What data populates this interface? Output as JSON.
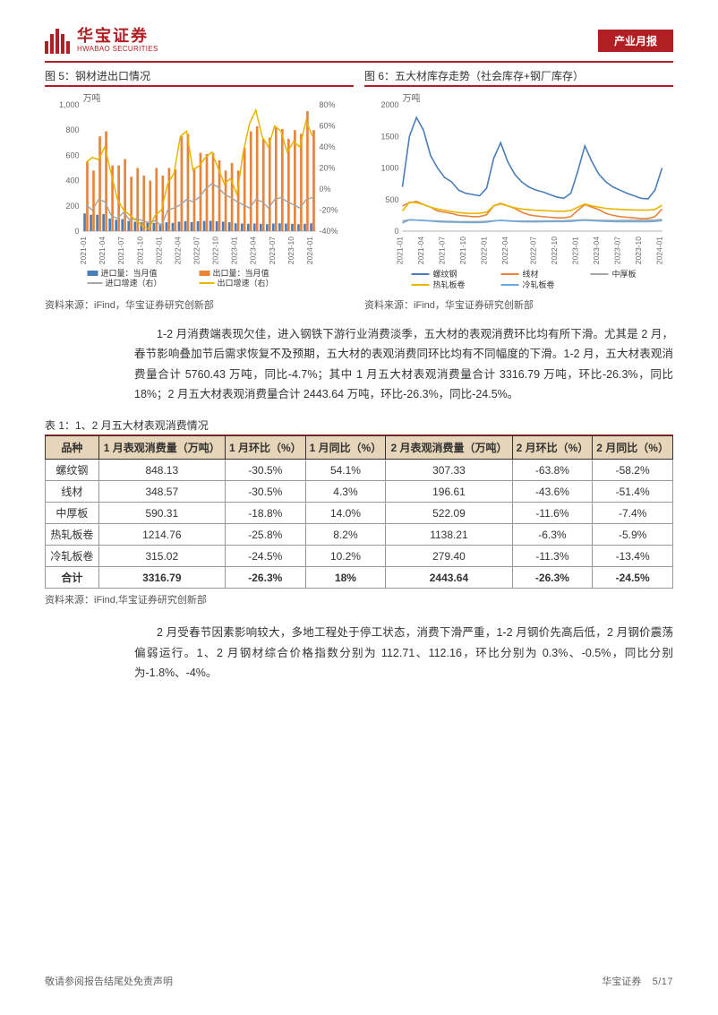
{
  "header": {
    "logo_cn": "华宝证券",
    "logo_en": "HWABAO SECURITIES",
    "report_tag": "产业月报"
  },
  "chart5": {
    "title": "图 5：钢材进出口情况",
    "y_unit": "万吨",
    "y_ticks_left": [
      0,
      200,
      400,
      600,
      800,
      1000
    ],
    "y_ticks_right": [
      "-40%",
      "-20%",
      "0%",
      "20%",
      "40%",
      "60%",
      "80%"
    ],
    "x_labels": [
      "2021-01",
      "2021-04",
      "2021-07",
      "2021-10",
      "2022-01",
      "2022-04",
      "2022-07",
      "2022-10",
      "2023-01",
      "2023-04",
      "2023-07",
      "2023-10",
      "2024-01"
    ],
    "import_vol": [
      140,
      130,
      130,
      135,
      100,
      90,
      95,
      80,
      75,
      70,
      68,
      65,
      60,
      70,
      65,
      75,
      78,
      72,
      78,
      80,
      82,
      78,
      75,
      70,
      62,
      60,
      58,
      60,
      58,
      55,
      60,
      62,
      60,
      58,
      55,
      58,
      62
    ],
    "export_vol": [
      550,
      480,
      750,
      790,
      520,
      520,
      570,
      430,
      500,
      440,
      400,
      500,
      440,
      500,
      490,
      750,
      770,
      500,
      620,
      610,
      620,
      560,
      480,
      540,
      480,
      660,
      790,
      830,
      730,
      740,
      820,
      810,
      730,
      800,
      770,
      950,
      800
    ],
    "import_growth": [
      -15,
      -20,
      -10,
      -12,
      -25,
      -28,
      -22,
      -30,
      -28,
      -30,
      -32,
      -30,
      -35,
      -20,
      -18,
      -15,
      -10,
      -12,
      -8,
      0,
      5,
      2,
      -5,
      -8,
      -12,
      -15,
      -18,
      -10,
      -12,
      -18,
      -10,
      -8,
      -12,
      -15,
      -18,
      -10,
      -8
    ],
    "export_growth": [
      25,
      30,
      28,
      40,
      15,
      -10,
      -20,
      -25,
      -30,
      -35,
      -38,
      -25,
      -20,
      5,
      15,
      50,
      55,
      18,
      22,
      30,
      35,
      20,
      5,
      10,
      -5,
      35,
      62,
      75,
      50,
      40,
      60,
      55,
      35,
      45,
      40,
      65,
      50
    ],
    "colors": {
      "import_vol": "#4a7ebb",
      "export_vol": "#e8833a",
      "import_growth": "#a6a6a6",
      "export_growth": "#e8b500"
    },
    "legend": [
      "进口量：当月值",
      "出口量：当月值",
      "进口增速（右）",
      "出口增速（右）"
    ],
    "source": "资料来源：iFind，华宝证券研究创新部"
  },
  "chart6": {
    "title": "图 6：五大材库存走势（社会库存+钢厂库存）",
    "y_unit": "万吨",
    "y_ticks": [
      0,
      500,
      1000,
      1500,
      2000
    ],
    "x_labels": [
      "2021-01",
      "2021-04",
      "2021-07",
      "2021-10",
      "2022-01",
      "2022-04",
      "2022-07",
      "2022-10",
      "2023-01",
      "2023-04",
      "2023-07",
      "2023-10",
      "2024-01"
    ],
    "series": {
      "rebar": [
        700,
        1500,
        1800,
        1600,
        1200,
        1000,
        850,
        780,
        650,
        600,
        580,
        560,
        680,
        1150,
        1400,
        1100,
        900,
        780,
        700,
        650,
        620,
        580,
        540,
        520,
        600,
        950,
        1350,
        1100,
        900,
        780,
        700,
        650,
        600,
        560,
        520,
        510,
        650,
        1000
      ],
      "wire": [
        400,
        450,
        470,
        420,
        380,
        320,
        300,
        280,
        250,
        240,
        230,
        230,
        260,
        400,
        440,
        400,
        360,
        300,
        260,
        240,
        230,
        220,
        210,
        210,
        230,
        330,
        420,
        380,
        340,
        280,
        250,
        230,
        220,
        210,
        200,
        200,
        230,
        350
      ],
      "plate": [
        160,
        180,
        175,
        170,
        165,
        160,
        155,
        155,
        150,
        150,
        150,
        150,
        155,
        165,
        170,
        165,
        160,
        158,
        158,
        158,
        160,
        162,
        165,
        165,
        168,
        175,
        180,
        175,
        172,
        170,
        168,
        168,
        170,
        172,
        172,
        172,
        175,
        185
      ],
      "hrc": [
        320,
        460,
        450,
        420,
        380,
        350,
        330,
        310,
        295,
        285,
        280,
        285,
        300,
        400,
        430,
        400,
        370,
        350,
        340,
        330,
        325,
        320,
        315,
        315,
        325,
        380,
        430,
        400,
        380,
        360,
        350,
        345,
        340,
        335,
        332,
        332,
        345,
        410
      ],
      "crc": [
        130,
        180,
        175,
        168,
        160,
        150,
        145,
        142,
        140,
        138,
        136,
        138,
        142,
        160,
        170,
        162,
        155,
        150,
        148,
        148,
        150,
        152,
        152,
        152,
        155,
        165,
        172,
        165,
        160,
        155,
        152,
        150,
        150,
        150,
        150,
        150,
        155,
        168
      ]
    },
    "colors": {
      "rebar": "#4a7ebb",
      "wire": "#e8833a",
      "plate": "#a6a6a6",
      "hrc": "#e8b500",
      "crc": "#6fa8dc"
    },
    "legend": [
      "螺纹钢",
      "线材",
      "中厚板",
      "热轧板卷",
      "冷轧板卷"
    ],
    "source": "资料来源：iFind，华宝证券研究创新部"
  },
  "para1": "1-2 月消费端表现欠佳，进入钢铁下游行业消费淡季，五大材的表观消费环比均有所下滑。尤其是 2 月，春节影响叠加节后需求恢复不及预期，五大材的表观消费同环比均有不同幅度的下滑。1-2 月，五大材表观消费量合计 5760.43 万吨，同比-4.7%；其中 1 月五大材表观消费量合计 3316.79 万吨，环比-26.3%，同比 18%；2 月五大材表观消费量合计 2443.64 万吨，环比-26.3%，同比-24.5%。",
  "table1": {
    "title": "表 1：1、2 月五大材表观消费情况",
    "columns": [
      "品种",
      "1 月表观消费量（万吨）",
      "1 月环比（%）",
      "1 月同比（%）",
      "2 月表观消费量（万吨）",
      "2 月环比（%）",
      "2 月同比（%）"
    ],
    "rows": [
      [
        "螺纹钢",
        "848.13",
        "-30.5%",
        "54.1%",
        "307.33",
        "-63.8%",
        "-58.2%"
      ],
      [
        "线材",
        "348.57",
        "-30.5%",
        "4.3%",
        "196.61",
        "-43.6%",
        "-51.4%"
      ],
      [
        "中厚板",
        "590.31",
        "-18.8%",
        "14.0%",
        "522.09",
        "-11.6%",
        "-7.4%"
      ],
      [
        "热轧板卷",
        "1214.76",
        "-25.8%",
        "8.2%",
        "1138.21",
        "-6.3%",
        "-5.9%"
      ],
      [
        "冷轧板卷",
        "315.02",
        "-24.5%",
        "10.2%",
        "279.40",
        "-11.3%",
        "-13.4%"
      ],
      [
        "合计",
        "3316.79",
        "-26.3%",
        "18%",
        "2443.64",
        "-26.3%",
        "-24.5%"
      ]
    ],
    "source": "资料来源：iFind,华宝证券研究创新部"
  },
  "para2": "2 月受春节因素影响较大，多地工程处于停工状态，消费下滑严重，1-2 月钢价先高后低，2 月钢价震荡偏弱运行。1、2 月钢材综合价格指数分别为 112.71、112.16，环比分别为 0.3%、-0.5%，同比分别为-1.8%、-4%。",
  "footer": {
    "disclaimer": "敬请参阅报告结尾处免责声明",
    "brand": "华宝证券",
    "page": "5/17"
  }
}
